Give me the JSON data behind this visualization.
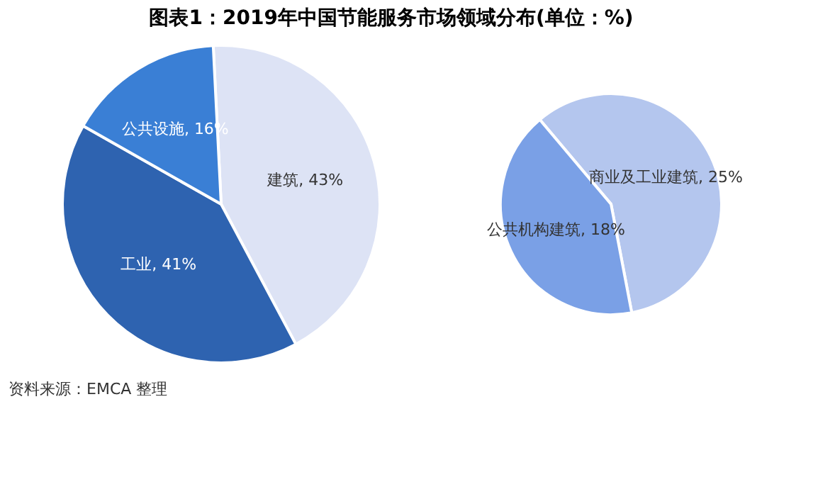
{
  "chart_data": [
    {
      "type": "pie",
      "title": "图表1：2019年中国节能服务市场领域分布(单位：%)",
      "categories": [
        "建筑",
        "工业",
        "公共设施"
      ],
      "values": [
        43,
        41,
        16
      ],
      "value_labels": [
        ", 43%",
        ", 41%",
        ", 16%"
      ],
      "colors": [
        "#dde3f5",
        "#2e63b0",
        "#3a7fd5"
      ],
      "annotations": [
        "资料来源：EMCA 整理"
      ]
    },
    {
      "type": "pie",
      "categories": [
        "商业及工业建筑",
        "公共机构建筑"
      ],
      "values": [
        25,
        18
      ],
      "value_labels": [
        ", 25%",
        ", 18%"
      ],
      "colors": [
        "#b4c6ee",
        "#7aa0e6"
      ]
    }
  ]
}
